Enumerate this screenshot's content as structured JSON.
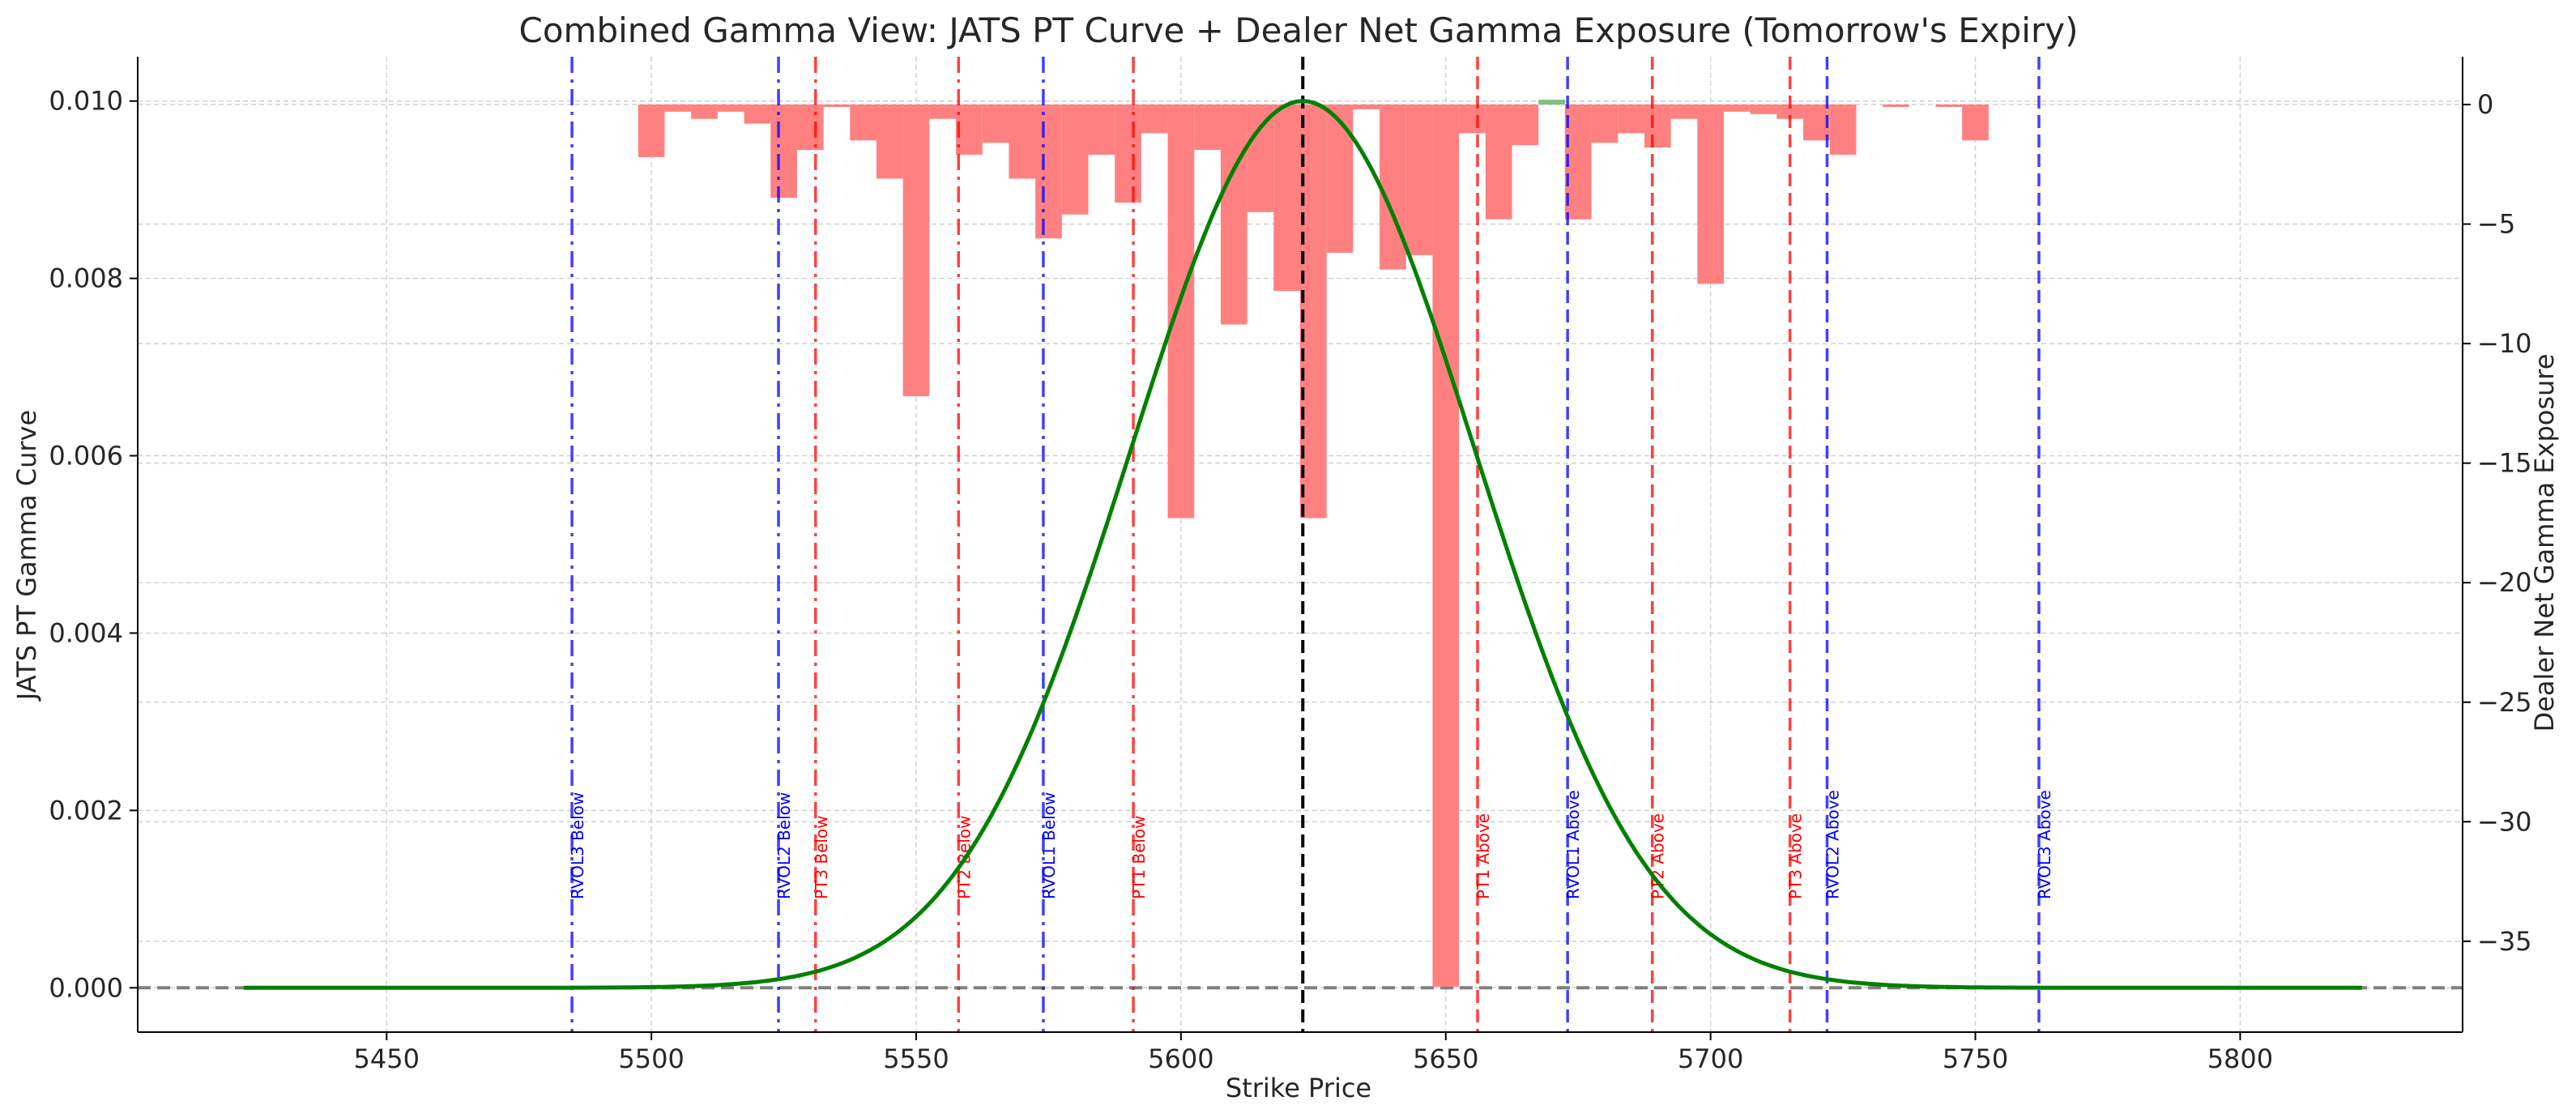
{
  "chart_data": {
    "type": "bar",
    "title": "Combined Gamma View: JATS PT Curve + Dealer Net Gamma Exposure (Tomorrow's Expiry)",
    "xlabel": "Strike Price",
    "ylabel": "JATS PT Gamma Curve",
    "y2label": "Dealer Net Gamma Exposure",
    "xlim": [
      5403,
      5842
    ],
    "ylim": [
      -0.0005,
      0.0105
    ],
    "y2lim": [
      -38.8,
      2.0
    ],
    "grid": true,
    "x_ticks": [
      5450,
      5500,
      5550,
      5600,
      5650,
      5700,
      5750,
      5800
    ],
    "y_ticks": [
      0.0,
      0.002,
      0.004,
      0.006,
      0.008,
      0.01
    ],
    "y_tick_labels": [
      "0.000",
      "0.002",
      "0.004",
      "0.006",
      "0.008",
      "0.010"
    ],
    "y2_ticks": [
      0,
      -5,
      -10,
      -15,
      -20,
      -25,
      -30,
      -35
    ],
    "y2_tick_labels": [
      "0",
      "−5",
      "−10",
      "−15",
      "−20",
      "−25",
      "−30",
      "−35"
    ],
    "curve": {
      "name": "JATS PT Gamma Curve",
      "mean": 5623,
      "sd": 32.5,
      "peak": 0.01,
      "x_range": [
        5423,
        5823
      ],
      "color": "#008000"
    },
    "bars": {
      "name": "Dealer Net Gamma Exposure",
      "width": 5,
      "color_negative": "#ff8080",
      "color_positive": "#7fbf7f",
      "values": [
        [
          5500,
          -2.2
        ],
        [
          5505,
          -0.3
        ],
        [
          5510,
          -0.6
        ],
        [
          5515,
          -0.3
        ],
        [
          5520,
          -0.8
        ],
        [
          5525,
          -3.9
        ],
        [
          5530,
          -1.9
        ],
        [
          5535,
          -0.1
        ],
        [
          5540,
          -1.5
        ],
        [
          5545,
          -3.1
        ],
        [
          5550,
          -12.2
        ],
        [
          5555,
          -0.6
        ],
        [
          5560,
          -2.1
        ],
        [
          5565,
          -1.6
        ],
        [
          5570,
          -3.1
        ],
        [
          5575,
          -5.6
        ],
        [
          5580,
          -4.6
        ],
        [
          5585,
          -2.1
        ],
        [
          5590,
          -4.1
        ],
        [
          5595,
          -1.2
        ],
        [
          5600,
          -17.3
        ],
        [
          5605,
          -1.9
        ],
        [
          5610,
          -9.2
        ],
        [
          5615,
          -4.5
        ],
        [
          5620,
          -7.8
        ],
        [
          5625,
          -17.3
        ],
        [
          5630,
          -6.2
        ],
        [
          5635,
          -0.2
        ],
        [
          5640,
          -6.9
        ],
        [
          5645,
          -6.3
        ],
        [
          5650,
          -36.9
        ],
        [
          5655,
          -1.2
        ],
        [
          5660,
          -4.8
        ],
        [
          5665,
          -1.7
        ],
        [
          5670,
          0.2
        ],
        [
          5675,
          -4.8
        ],
        [
          5680,
          -1.6
        ],
        [
          5685,
          -1.2
        ],
        [
          5690,
          -1.8
        ],
        [
          5695,
          -0.6
        ],
        [
          5700,
          -7.5
        ],
        [
          5705,
          -0.3
        ],
        [
          5710,
          -0.4
        ],
        [
          5715,
          -0.6
        ],
        [
          5720,
          -1.5
        ],
        [
          5725,
          -2.1
        ],
        [
          5735,
          -0.1
        ],
        [
          5745,
          -0.1
        ],
        [
          5750,
          -1.5
        ]
      ]
    },
    "current_price": 5623,
    "levels": [
      {
        "label": "RVOL3 Below",
        "x": 5485,
        "color": "#0000ff",
        "style": "dashdot"
      },
      {
        "label": "RVOL2 Below",
        "x": 5524,
        "color": "#0000ff",
        "style": "dashdot"
      },
      {
        "label": "PT3 Below",
        "x": 5531,
        "color": "#ff0000",
        "style": "dashdot"
      },
      {
        "label": "PT2 Below",
        "x": 5558,
        "color": "#ff0000",
        "style": "dashdot"
      },
      {
        "label": "RVOL1 Below",
        "x": 5574,
        "color": "#0000ff",
        "style": "dashdot"
      },
      {
        "label": "PT1 Below",
        "x": 5591,
        "color": "#ff0000",
        "style": "dashdot"
      },
      {
        "label": "PT1 Above",
        "x": 5656,
        "color": "#ff0000",
        "style": "dashed"
      },
      {
        "label": "RVOL1 Above",
        "x": 5673,
        "color": "#0000ff",
        "style": "dashed"
      },
      {
        "label": "PT2 Above",
        "x": 5689,
        "color": "#ff0000",
        "style": "dashed"
      },
      {
        "label": "PT3 Above",
        "x": 5715,
        "color": "#ff0000",
        "style": "dashed"
      },
      {
        "label": "RVOL2 Above",
        "x": 5722,
        "color": "#0000ff",
        "style": "dashed"
      },
      {
        "label": "RVOL3 Above",
        "x": 5762,
        "color": "#0000ff",
        "style": "dashed"
      }
    ]
  }
}
